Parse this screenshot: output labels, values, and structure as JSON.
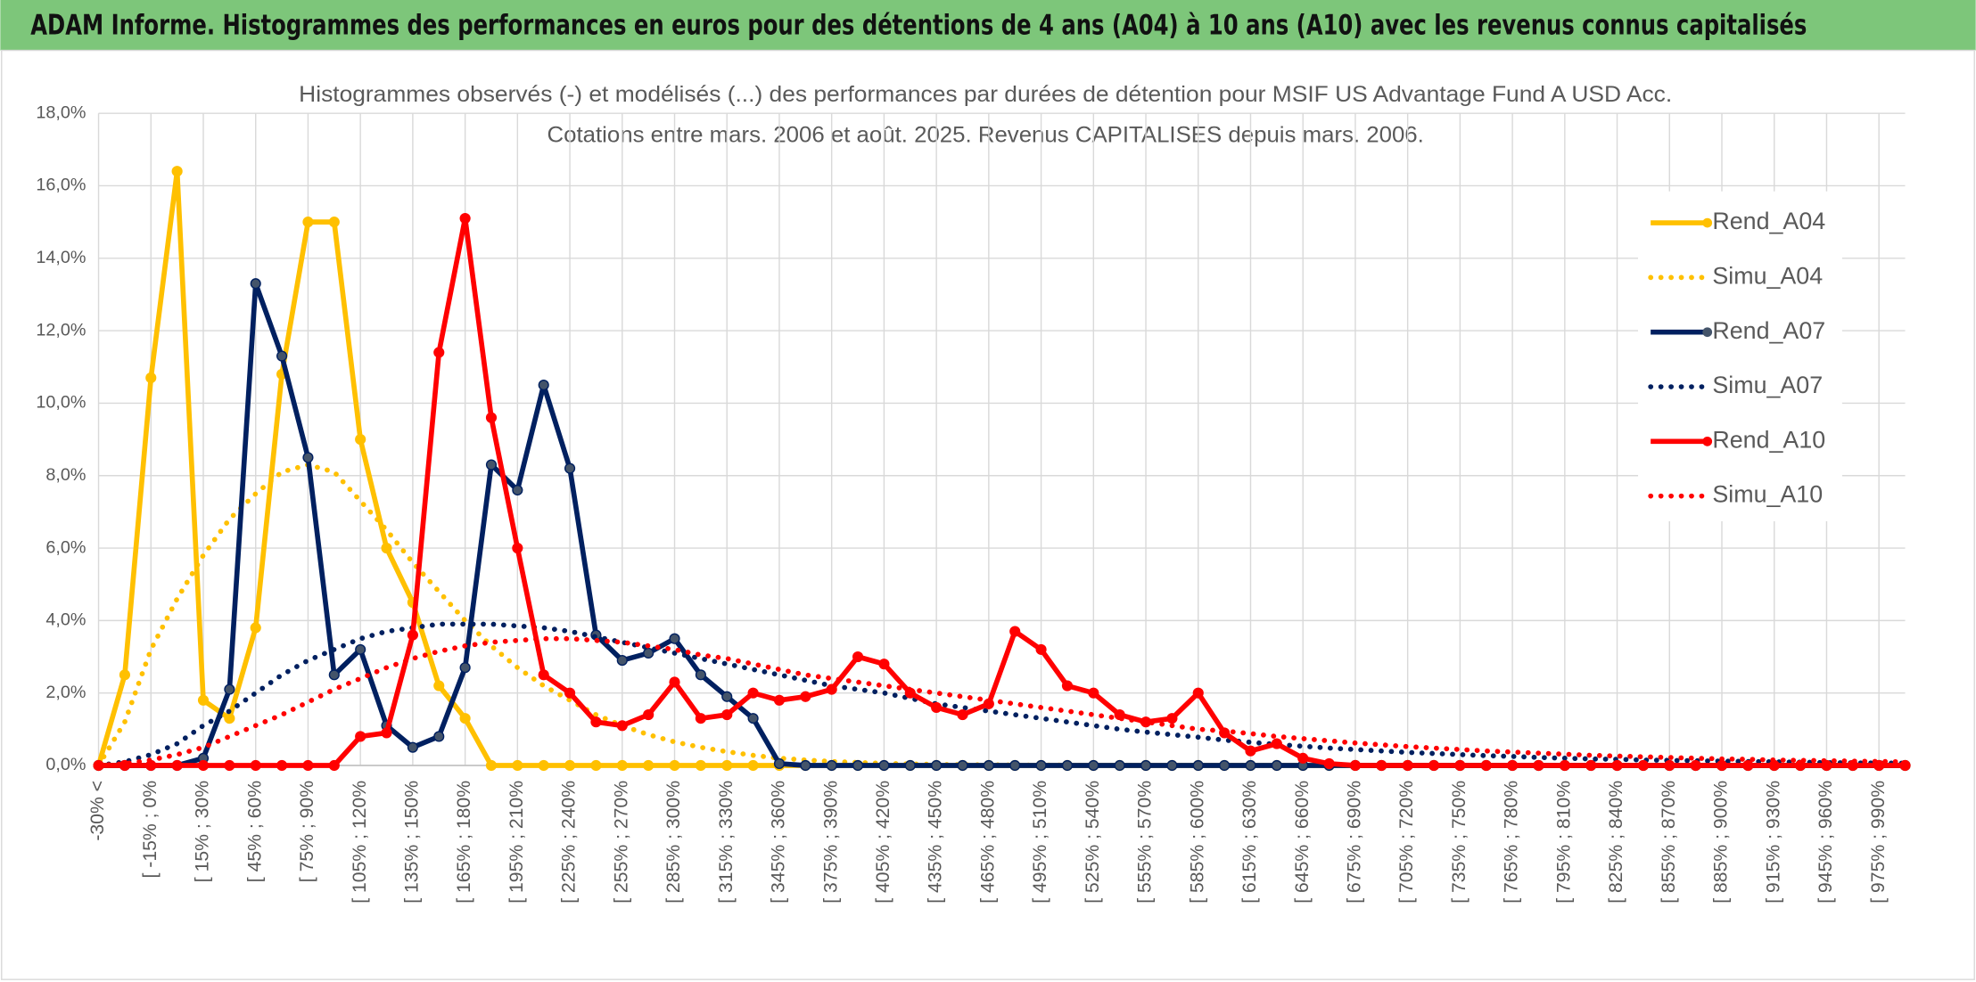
{
  "chart_data": {
    "type": "line",
    "title": "ADAM Informe. Histogrammes des performances en euros pour des détentions de 4 ans (A04) à 10 ans (A10) avec les revenus connus capitalisés",
    "subtitle": [
      "Histogrammes observés (-) et modélisés (...) des performances par durées de détention pour MSIF US Advantage Fund A USD Acc.",
      "Cotations entre mars. 2006 et août. 2025. Revenus CAPITALISES depuis mars. 2006."
    ],
    "categories": [
      "-30% <",
      null,
      "[ -15% ; 0%",
      null,
      "[ 15% ; 30%",
      null,
      "[ 45% ; 60%",
      null,
      "[ 75% ; 90%",
      null,
      "[ 105% ; 120%",
      null,
      "[ 135% ; 150%",
      null,
      "[ 165% ; 180%",
      null,
      "[ 195% ; 210%",
      null,
      "[ 225% ; 240%",
      null,
      "[ 255% ; 270%",
      null,
      "[ 285% ; 300%",
      null,
      "[ 315% ; 330%",
      null,
      "[ 345% ; 360%",
      null,
      "[ 375% ; 390%",
      null,
      "[ 405% ; 420%",
      null,
      "[ 435% ; 450%",
      null,
      "[ 465% ; 480%",
      null,
      "[ 495% ; 510%",
      null,
      "[ 525% ; 540%",
      null,
      "[ 555% ; 570%",
      null,
      "[ 585% ; 600%",
      null,
      "[ 615% ; 630%",
      null,
      "[ 645% ; 660%",
      null,
      "[ 675% ; 690%",
      null,
      "[ 705% ; 720%",
      null,
      "[ 735% ; 750%",
      null,
      "[ 765% ; 780%",
      null,
      "[ 795% ; 810%",
      null,
      "[ 825% ; 840%",
      null,
      "[ 855% ; 870%",
      null,
      "[ 885% ; 900%",
      null,
      "[ 915% ; 930%",
      null,
      "[ 945% ; 960%",
      null,
      "[ 975% ; 990%",
      null
    ],
    "series": [
      {
        "name": "Rend_A04",
        "color": "#FFC000",
        "style": "solid",
        "markers": true,
        "values": [
          0,
          2.5,
          10.7,
          16.4,
          1.8,
          1.3,
          3.8,
          10.8,
          15.0,
          15.0,
          9.0,
          6.0,
          4.5,
          2.2,
          1.3,
          0,
          0,
          0,
          0,
          0,
          0,
          0,
          0,
          0,
          0,
          0,
          0,
          0,
          0,
          0,
          0,
          0,
          0,
          0,
          0,
          0,
          0,
          0,
          0,
          0,
          0,
          0,
          0,
          0,
          0,
          0,
          0,
          0,
          0,
          0,
          0,
          0,
          0,
          0,
          0,
          0,
          0,
          0,
          0,
          0,
          0,
          0,
          0,
          0,
          0,
          0,
          0,
          0,
          0,
          0
        ]
      },
      {
        "name": "Simu_A04",
        "color": "#FFC000",
        "style": "dotted",
        "markers": false,
        "values": [
          0,
          1.2,
          3.2,
          4.6,
          5.8,
          6.8,
          7.5,
          8.1,
          8.3,
          8.1,
          7.3,
          6.5,
          5.6,
          4.8,
          4.0,
          3.3,
          2.7,
          2.2,
          1.8,
          1.4,
          1.1,
          0.85,
          0.65,
          0.5,
          0.38,
          0.28,
          0.2,
          0.15,
          0.11,
          0.08,
          0.06,
          0.04,
          0.03,
          0.02,
          0.02,
          0.01,
          0.01,
          0.01,
          0,
          0,
          0,
          0,
          0,
          0,
          0,
          0,
          0,
          0,
          0,
          0,
          0,
          0,
          0,
          0,
          0,
          0,
          0,
          0,
          0,
          0,
          0,
          0,
          0,
          0,
          0,
          0,
          0,
          0,
          0,
          0
        ]
      },
      {
        "name": "Rend_A07",
        "color": "#002060",
        "style": "solid",
        "markers": true,
        "values": [
          0,
          0,
          0,
          0,
          0.2,
          2.1,
          13.3,
          11.3,
          8.5,
          2.5,
          3.2,
          1.1,
          0.5,
          0.8,
          2.7,
          8.3,
          7.6,
          10.5,
          8.2,
          3.6,
          2.9,
          3.1,
          3.5,
          2.5,
          1.9,
          1.3,
          0.05,
          0,
          0,
          0,
          0,
          0,
          0,
          0,
          0,
          0,
          0,
          0,
          0,
          0,
          0,
          0,
          0,
          0,
          0,
          0,
          0,
          0,
          0,
          0,
          0,
          0,
          0,
          0,
          0,
          0,
          0,
          0,
          0,
          0,
          0,
          0,
          0,
          0,
          0,
          0,
          0,
          0,
          0,
          0
        ]
      },
      {
        "name": "Simu_A07",
        "color": "#002060",
        "style": "dotted",
        "markers": false,
        "values": [
          0,
          0.1,
          0.3,
          0.6,
          1.1,
          1.5,
          2.0,
          2.5,
          2.9,
          3.2,
          3.5,
          3.7,
          3.8,
          3.9,
          3.9,
          3.9,
          3.85,
          3.8,
          3.7,
          3.55,
          3.4,
          3.25,
          3.1,
          2.95,
          2.8,
          2.65,
          2.5,
          2.35,
          2.2,
          2.1,
          2.0,
          1.85,
          1.7,
          1.6,
          1.5,
          1.4,
          1.3,
          1.2,
          1.1,
          1.0,
          0.92,
          0.85,
          0.78,
          0.7,
          0.64,
          0.58,
          0.53,
          0.48,
          0.44,
          0.4,
          0.36,
          0.33,
          0.3,
          0.27,
          0.25,
          0.22,
          0.2,
          0.18,
          0.17,
          0.15,
          0.14,
          0.13,
          0.12,
          0.11,
          0.1,
          0.09,
          0.08,
          0.07,
          0.07,
          0.06
        ]
      },
      {
        "name": "Rend_A10",
        "color": "#FF0000",
        "style": "solid",
        "markers": true,
        "values": [
          0,
          0,
          0,
          0,
          0,
          0,
          0,
          0,
          0,
          0,
          0.8,
          0.9,
          3.6,
          11.4,
          15.1,
          9.6,
          6.0,
          2.5,
          2.0,
          1.2,
          1.1,
          1.4,
          2.3,
          1.3,
          1.4,
          2.0,
          1.8,
          1.9,
          2.1,
          3.0,
          2.8,
          2.0,
          1.6,
          1.4,
          1.7,
          3.7,
          3.2,
          2.2,
          2.0,
          1.4,
          1.2,
          1.3,
          2.0,
          0.9,
          0.4,
          0.6,
          0.2,
          0.05,
          0,
          0,
          0,
          0,
          0,
          0,
          0,
          0,
          0,
          0,
          0,
          0,
          0,
          0,
          0,
          0,
          0,
          0,
          0,
          0,
          0,
          0
        ]
      },
      {
        "name": "Simu_A10",
        "color": "#FF0000",
        "style": "dotted",
        "markers": false,
        "values": [
          0,
          0.05,
          0.15,
          0.3,
          0.5,
          0.8,
          1.1,
          1.4,
          1.75,
          2.1,
          2.4,
          2.7,
          2.95,
          3.15,
          3.3,
          3.4,
          3.45,
          3.5,
          3.5,
          3.45,
          3.4,
          3.3,
          3.2,
          3.05,
          2.95,
          2.8,
          2.65,
          2.5,
          2.4,
          2.3,
          2.2,
          2.1,
          2.0,
          1.9,
          1.8,
          1.7,
          1.6,
          1.5,
          1.4,
          1.3,
          1.2,
          1.1,
          1.0,
          0.95,
          0.88,
          0.8,
          0.74,
          0.68,
          0.62,
          0.57,
          0.52,
          0.48,
          0.44,
          0.4,
          0.37,
          0.34,
          0.31,
          0.28,
          0.26,
          0.24,
          0.22,
          0.2,
          0.18,
          0.17,
          0.15,
          0.14,
          0.13,
          0.12,
          0.11,
          0.1
        ]
      }
    ],
    "ylim": [
      0,
      18
    ],
    "yticks": [
      {
        "value": 0,
        "label": "0,0%"
      },
      {
        "value": 2,
        "label": "2,0%"
      },
      {
        "value": 4,
        "label": "4,0%"
      },
      {
        "value": 6,
        "label": "6,0%"
      },
      {
        "value": 8,
        "label": "8,0%"
      },
      {
        "value": 10,
        "label": "10,0%"
      },
      {
        "value": 12,
        "label": "12,0%"
      },
      {
        "value": 14,
        "label": "14,0%"
      },
      {
        "value": 16,
        "label": "16,0%"
      },
      {
        "value": 18,
        "label": "18,0%"
      }
    ],
    "grid": true,
    "legend": "right"
  }
}
